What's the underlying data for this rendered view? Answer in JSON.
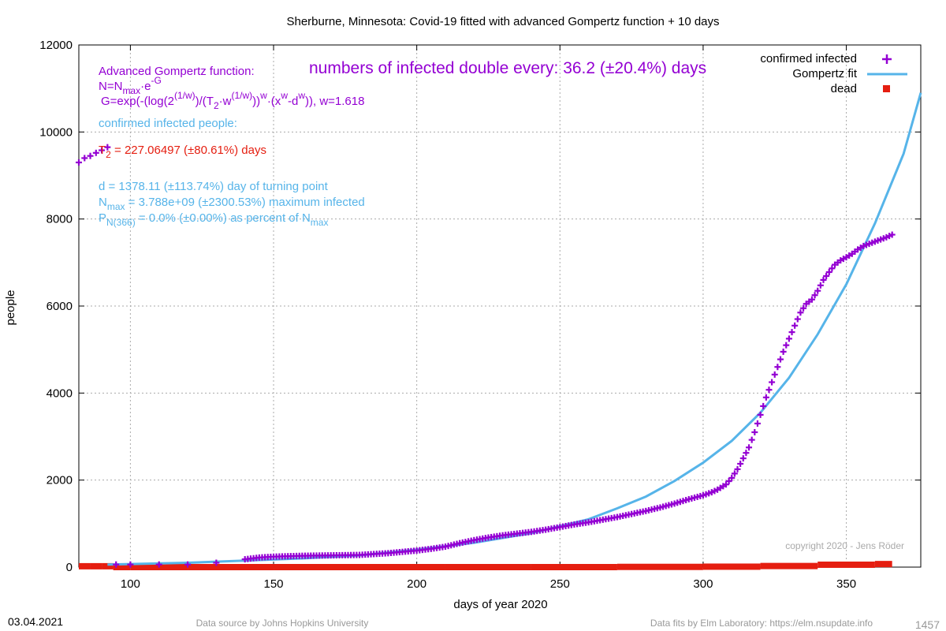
{
  "chart_data": {
    "type": "scatter",
    "title": "Sherburne,  Minnesota: Covid-19 fitted with advanced Gompertz function + 10 days",
    "xlabel": "days of year 2020",
    "ylabel": "people",
    "xlim": [
      82,
      376
    ],
    "ylim": [
      0,
      12000
    ],
    "x_ticks": [
      100,
      150,
      200,
      250,
      300,
      350
    ],
    "y_ticks": [
      0,
      2000,
      4000,
      6000,
      8000,
      10000,
      12000
    ],
    "grid": true,
    "legend_position": "top-right",
    "legend": [
      {
        "label": "confirmed infected",
        "color": "#9400d3",
        "marker": "plus"
      },
      {
        "label": "Gompertz fit",
        "color": "#56b4e9",
        "marker": "line"
      },
      {
        "label": "dead",
        "color": "#e51e10",
        "marker": "square"
      }
    ],
    "series": [
      {
        "name": "confirmed infected",
        "color": "#9400d3",
        "x": [
          82,
          84,
          86,
          88,
          90,
          92,
          95,
          100,
          110,
          120,
          130,
          140,
          145,
          150,
          155,
          160,
          170,
          180,
          190,
          200,
          205,
          210,
          215,
          220,
          225,
          230,
          235,
          240,
          245,
          250,
          255,
          260,
          265,
          270,
          275,
          280,
          285,
          290,
          295,
          300,
          303,
          305,
          308,
          310,
          312,
          314,
          316,
          318,
          320,
          322,
          324,
          326,
          328,
          330,
          332,
          334,
          336,
          338,
          340,
          342,
          344,
          346,
          348,
          350,
          352,
          354,
          356,
          358,
          360,
          362,
          364,
          366
        ],
        "y": [
          9300,
          9400,
          9450,
          9520,
          9580,
          9650,
          60,
          60,
          60,
          60,
          100,
          180,
          220,
          240,
          250,
          260,
          270,
          280,
          320,
          380,
          420,
          470,
          550,
          620,
          680,
          730,
          770,
          810,
          860,
          920,
          980,
          1030,
          1090,
          1150,
          1220,
          1290,
          1370,
          1460,
          1560,
          1650,
          1720,
          1780,
          1900,
          2050,
          2250,
          2500,
          2750,
          3100,
          3500,
          3900,
          4250,
          4600,
          4950,
          5250,
          5550,
          5850,
          6050,
          6150,
          6350,
          6600,
          6780,
          6950,
          7050,
          7120,
          7200,
          7300,
          7380,
          7430,
          7480,
          7530,
          7580,
          7640
        ]
      },
      {
        "name": "Gompertz fit",
        "color": "#56b4e9",
        "x": [
          92,
          100,
          120,
          140,
          160,
          180,
          200,
          220,
          240,
          260,
          270,
          280,
          290,
          300,
          310,
          320,
          330,
          340,
          350,
          360,
          370,
          376
        ],
        "y": [
          60,
          70,
          100,
          150,
          200,
          270,
          400,
          560,
          780,
          1100,
          1350,
          1620,
          1980,
          2400,
          2900,
          3550,
          4350,
          5350,
          6500,
          7900,
          9500,
          10900
        ]
      },
      {
        "name": "dead",
        "color": "#e51e10",
        "x": [
          82,
          86,
          90,
          94,
          100,
          120,
          150,
          180,
          210,
          240,
          270,
          300,
          320,
          340,
          360,
          366
        ],
        "y": [
          20,
          20,
          20,
          0,
          0,
          0,
          0,
          0,
          0,
          0,
          5,
          10,
          25,
          55,
          70,
          75
        ]
      }
    ]
  },
  "annotations": {
    "gompertz_title": "Advanced Gompertz function:",
    "formula_n": "N=N",
    "formula_n_sub": "max",
    "formula_n_rest": "·e",
    "formula_n_sup": "-G",
    "formula_g_1": "G=exp(-(log(2",
    "formula_g_sup1": "(1/w)",
    "formula_g_2": ")/(T",
    "formula_g_sub1": "2",
    "formula_g_3": "·w",
    "formula_g_sup2": "(1/w)",
    "formula_g_4": "))",
    "formula_g_sup3": "w",
    "formula_g_5": "·(x",
    "formula_g_sup4": "w",
    "formula_g_6": "-d",
    "formula_g_sup5": "w",
    "formula_g_7": ")), w=1.618",
    "doubling_text": "numbers of infected double every: 36.2 (±20.4%) days",
    "confirmed_label": "confirmed infected people:",
    "t2_prefix": "T",
    "t2_sub": "2",
    "t2_value": " = 227.06497 (±80.61%) days",
    "d_line": "d = 1378.11 (±113.74%) day of turning point",
    "nmax_prefix": "N",
    "nmax_sub": "max",
    "nmax_value": " = 3.788e+09 (±2300.53%) maximum infected",
    "p_prefix": "P",
    "p_sub": "N(366)",
    "p_value": " = 0.0% (±0.00%) as percent of N",
    "p_sub2": "max",
    "copyright": "copyright 2020 - Jens Röder"
  },
  "footer": {
    "date": "03.04.2021",
    "source": "Data source by Johns Hopkins University",
    "fits": "Data fits by Elm Laboratory: https://elm.nsupdate.info",
    "counter": "1457"
  },
  "colors": {
    "infected": "#9400d3",
    "fit": "#56b4e9",
    "dead": "#e51e10",
    "t2_text": "#e51e10",
    "grid": "#aaaaaa"
  }
}
